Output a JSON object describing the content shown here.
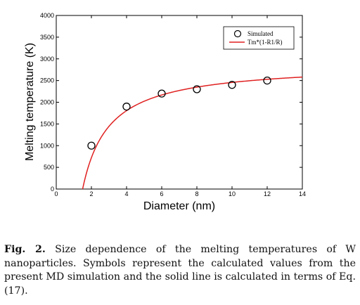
{
  "chart_data": {
    "type": "scatter",
    "title": "",
    "xlabel": "Diameter (nm)",
    "ylabel": "Melting temperature (K)",
    "xlim": [
      0,
      14
    ],
    "ylim": [
      0,
      4000
    ],
    "x_ticks": [
      0,
      2,
      4,
      6,
      8,
      10,
      12,
      14
    ],
    "y_ticks": [
      0,
      500,
      1000,
      1500,
      2000,
      2500,
      3000,
      3500,
      4000
    ],
    "grid": false,
    "legend_position": "top-right",
    "series": [
      {
        "name": "Simulated",
        "kind": "scatter",
        "marker": "open-circle",
        "color": "#000000",
        "x": [
          2,
          4,
          6,
          8,
          10,
          12
        ],
        "y": [
          1000,
          1900,
          2200,
          2300,
          2400,
          2500
        ]
      },
      {
        "name": "Tm*(1-R1/R)",
        "kind": "line",
        "color": "#e02020",
        "model": {
          "Tm": 2890,
          "R1": 1.5
        }
      }
    ]
  },
  "caption": {
    "label": "Fig. 2.",
    "text": "Size dependence of the melting temperatures of W nanoparticles. Symbols represent the calculated values from the present MD simulation and the solid line is calculated in terms of Eq. (17)."
  }
}
